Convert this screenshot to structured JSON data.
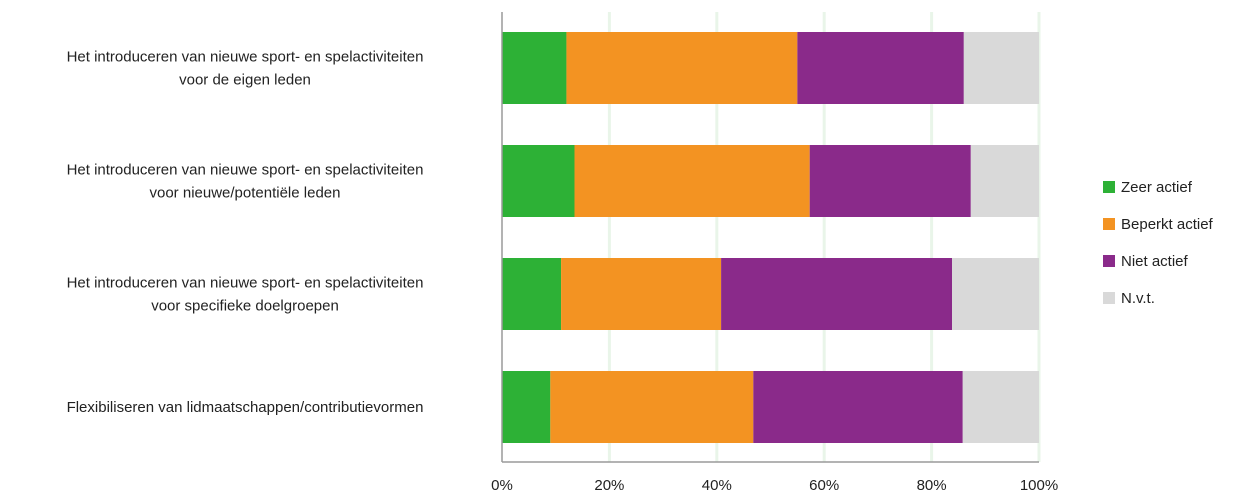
{
  "chart_data": {
    "type": "bar",
    "orientation": "horizontal",
    "stacked": true,
    "percent_stacked": true,
    "categories": [
      [
        "Het introduceren van nieuwe sport- en spelactiviteiten",
        "voor de eigen leden"
      ],
      [
        "Het introduceren van nieuwe sport- en spelactiviteiten",
        "voor nieuwe/potentiële leden"
      ],
      [
        "Het introduceren van nieuwe sport- en spelactiviteiten",
        "voor specifieke doelgroepen"
      ],
      [
        "Flexibiliseren van lidmaatschappen/contributievormen"
      ]
    ],
    "series": [
      {
        "name": "Zeer actief",
        "color": "#2db136",
        "values": [
          12,
          13.5,
          11,
          9
        ]
      },
      {
        "name": "Beperkt actief",
        "color": "#f39322",
        "values": [
          43,
          43.8,
          29.8,
          37.8
        ]
      },
      {
        "name": "Niet actief",
        "color": "#8a2a8a",
        "values": [
          31,
          30,
          43,
          39
        ]
      },
      {
        "name": "N.v.t.",
        "color": "#d9d9d9",
        "values": [
          14,
          12.7,
          16.2,
          14.2
        ]
      }
    ],
    "xlim": [
      0,
      100
    ],
    "x_ticks": [
      "0%",
      "20%",
      "40%",
      "60%",
      "80%",
      "100%"
    ],
    "grid": true,
    "grid_color": "#e9f5e9",
    "legend_position": "right"
  }
}
